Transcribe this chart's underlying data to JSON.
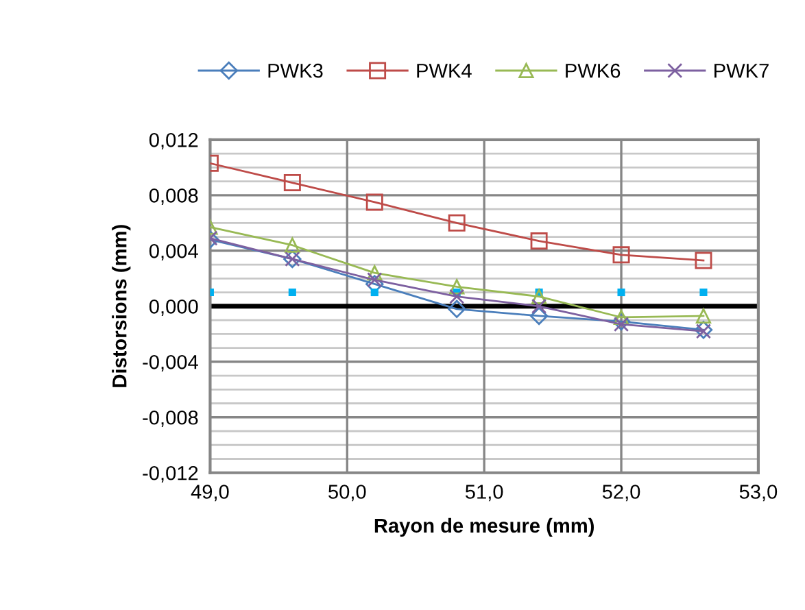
{
  "chart_data": {
    "type": "line",
    "xlabel": "Rayon de mesure (mm)",
    "ylabel": "Distorsions (mm)",
    "x": [
      49.0,
      49.6,
      50.2,
      50.8,
      51.4,
      52.0,
      52.6
    ],
    "series": [
      {
        "name": "PWK3",
        "color": "#4a7ebb",
        "marker": "diamond",
        "values": [
          0.0048,
          0.0034,
          0.0016,
          -0.0002,
          -0.0007,
          -0.0011,
          -0.0017
        ]
      },
      {
        "name": "PWK4",
        "color": "#be4b48",
        "marker": "square",
        "values": [
          0.0103,
          0.0089,
          0.0075,
          0.006,
          0.0047,
          0.0037,
          0.0033
        ]
      },
      {
        "name": "PWK6",
        "color": "#98b954",
        "marker": "triangle",
        "values": [
          0.0057,
          0.0044,
          0.0024,
          0.0014,
          0.0007,
          -0.0008,
          -0.0007
        ]
      },
      {
        "name": "PWK7",
        "color": "#7d60a0",
        "marker": "cross",
        "values": [
          0.0049,
          0.0034,
          0.0019,
          0.0007,
          0.0,
          -0.0013,
          -0.0018
        ]
      },
      {
        "type": "scatter",
        "color": "#00b0f0",
        "marker": "square",
        "values": [
          0.001,
          0.001,
          0.001,
          0.001,
          0.001,
          0.001,
          0.001
        ]
      }
    ],
    "xlim": [
      49.0,
      53.0
    ],
    "xticks": [
      {
        "value": 49.0,
        "label": "49,0"
      },
      {
        "value": 50.0,
        "label": "50,0"
      },
      {
        "value": 51.0,
        "label": "51,0"
      },
      {
        "value": 52.0,
        "label": "52,0"
      },
      {
        "value": 53.0,
        "label": "53,0"
      }
    ],
    "ylim": [
      -0.012,
      0.012
    ],
    "yticks": [
      {
        "value": -0.012,
        "label": "-0,012"
      },
      {
        "value": -0.011,
        "label": null
      },
      {
        "value": -0.01,
        "label": null
      },
      {
        "value": -0.009,
        "label": null
      },
      {
        "value": -0.008,
        "label": "-0,008"
      },
      {
        "value": -0.007,
        "label": null
      },
      {
        "value": -0.006,
        "label": null
      },
      {
        "value": -0.005,
        "label": null
      },
      {
        "value": -0.004,
        "label": "-0,004"
      },
      {
        "value": -0.003,
        "label": null
      },
      {
        "value": -0.002,
        "label": null
      },
      {
        "value": -0.001,
        "label": null
      },
      {
        "value": 0.0,
        "label": "0,000"
      },
      {
        "value": 0.001,
        "label": null
      },
      {
        "value": 0.002,
        "label": null
      },
      {
        "value": 0.003,
        "label": null
      },
      {
        "value": 0.004,
        "label": "0,004"
      },
      {
        "value": 0.005,
        "label": null
      },
      {
        "value": 0.006,
        "label": null
      },
      {
        "value": 0.007,
        "label": null
      },
      {
        "value": 0.008,
        "label": "0,008"
      },
      {
        "value": 0.009,
        "label": null
      },
      {
        "value": 0.01,
        "label": null
      },
      {
        "value": 0.011,
        "label": null
      },
      {
        "value": 0.012,
        "label": "0,012"
      }
    ],
    "ref_lines": [
      {
        "axis": "y",
        "value": 0.0,
        "color": "#000000",
        "line_style": "solid"
      }
    ],
    "grid": true,
    "legend": "top",
    "line_style": "solid"
  }
}
